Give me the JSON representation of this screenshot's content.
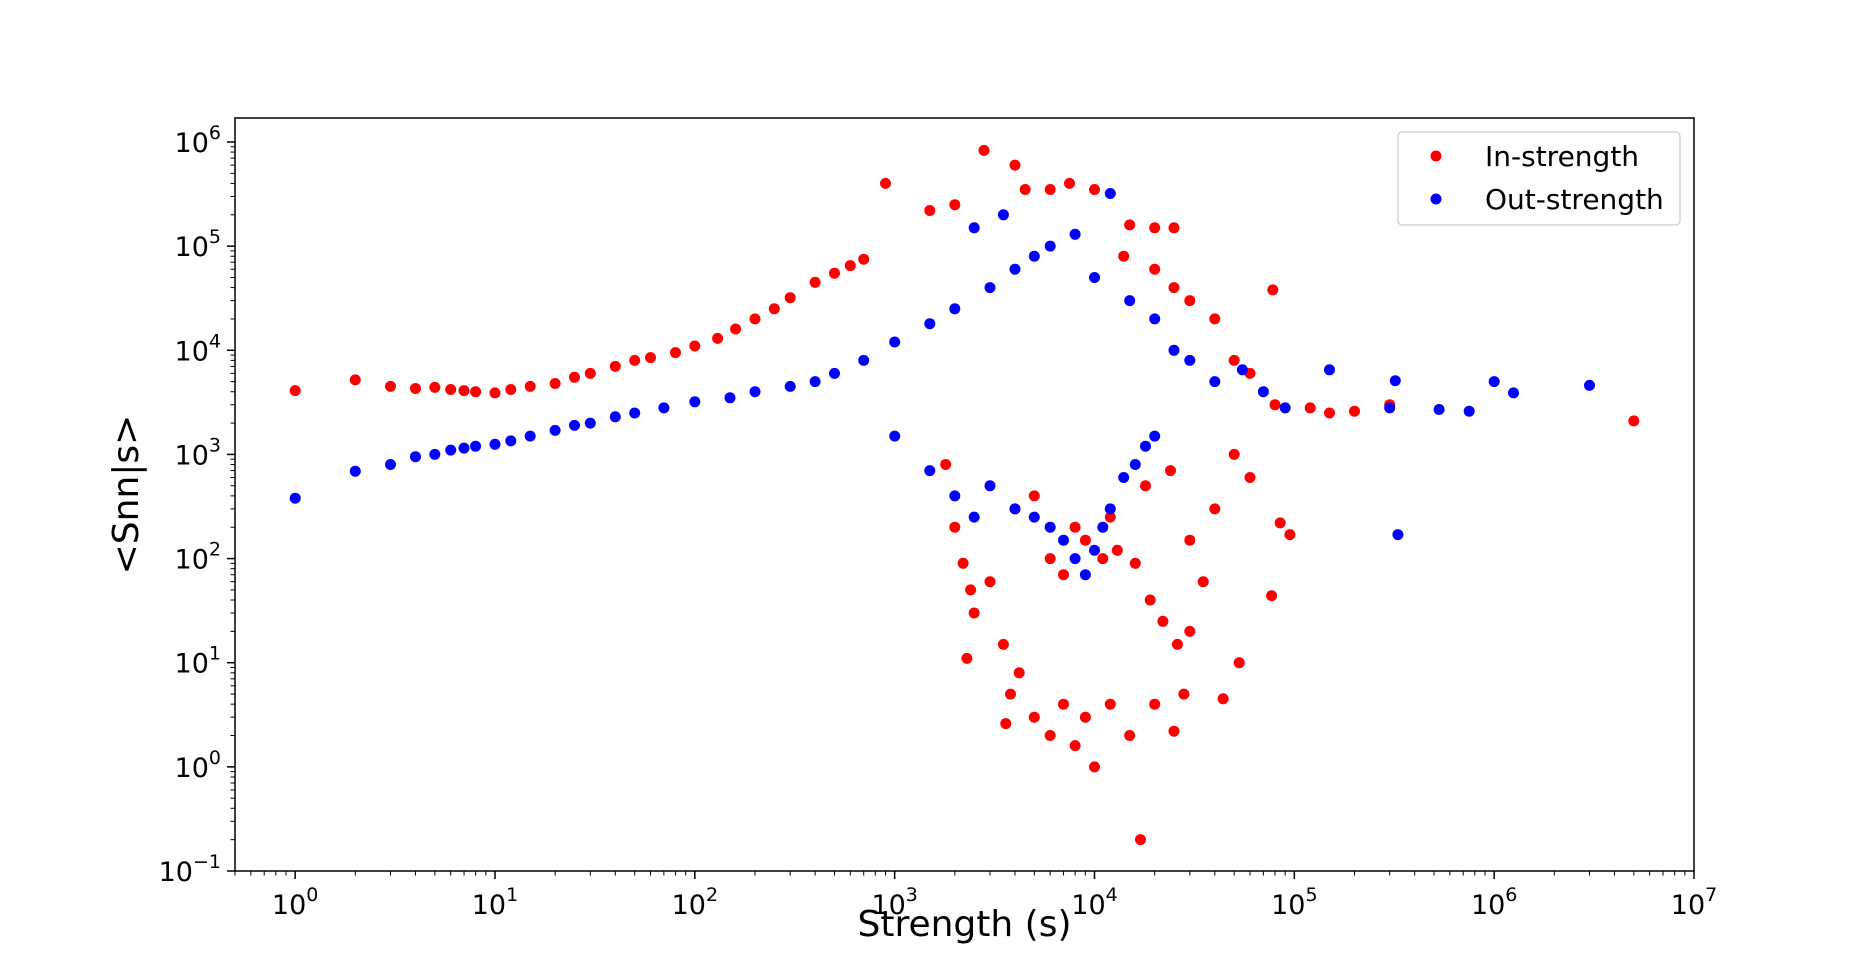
{
  "chart_data": {
    "type": "scatter",
    "title": "",
    "xlabel": "Strength (s)",
    "ylabel": "<Snn|s>",
    "xscale": "log",
    "yscale": "log",
    "xlim": [
      0.5,
      10000000
    ],
    "ylim": [
      0.1,
      1700000
    ],
    "x_ticks": [
      {
        "value": 1,
        "base": "10",
        "exp": "0"
      },
      {
        "value": 10,
        "base": "10",
        "exp": "1"
      },
      {
        "value": 100,
        "base": "10",
        "exp": "2"
      },
      {
        "value": 1000,
        "base": "10",
        "exp": "3"
      },
      {
        "value": 10000,
        "base": "10",
        "exp": "4"
      },
      {
        "value": 100000,
        "base": "10",
        "exp": "5"
      },
      {
        "value": 1000000,
        "base": "10",
        "exp": "6"
      },
      {
        "value": 10000000,
        "base": "10",
        "exp": "7"
      }
    ],
    "y_ticks": [
      {
        "value": 0.1,
        "base": "10",
        "exp": "−1"
      },
      {
        "value": 1,
        "base": "10",
        "exp": "0"
      },
      {
        "value": 10,
        "base": "10",
        "exp": "1"
      },
      {
        "value": 100,
        "base": "10",
        "exp": "2"
      },
      {
        "value": 1000,
        "base": "10",
        "exp": "3"
      },
      {
        "value": 10000,
        "base": "10",
        "exp": "4"
      },
      {
        "value": 100000,
        "base": "10",
        "exp": "5"
      },
      {
        "value": 1000000,
        "base": "10",
        "exp": "6"
      }
    ],
    "grid": false,
    "legend_position": "top-right",
    "series": [
      {
        "name": "In-strength",
        "color": "#ff0000",
        "points": [
          [
            1,
            4100
          ],
          [
            2,
            5200
          ],
          [
            3,
            4500
          ],
          [
            4,
            4300
          ],
          [
            5,
            4400
          ],
          [
            6,
            4200
          ],
          [
            7,
            4100
          ],
          [
            8,
            4000
          ],
          [
            10,
            3900
          ],
          [
            12,
            4200
          ],
          [
            15,
            4500
          ],
          [
            20,
            4800
          ],
          [
            25,
            5500
          ],
          [
            30,
            6000
          ],
          [
            40,
            7000
          ],
          [
            50,
            8000
          ],
          [
            60,
            8500
          ],
          [
            80,
            9500
          ],
          [
            100,
            11000
          ],
          [
            130,
            13000
          ],
          [
            160,
            16000
          ],
          [
            200,
            20000
          ],
          [
            250,
            25000
          ],
          [
            300,
            32000
          ],
          [
            400,
            45000
          ],
          [
            500,
            55000
          ],
          [
            600,
            65000
          ],
          [
            700,
            75000
          ],
          [
            900,
            400000
          ],
          [
            1500,
            220000
          ],
          [
            2000,
            250000
          ],
          [
            2800,
            830000
          ],
          [
            4000,
            600000
          ],
          [
            4500,
            350000
          ],
          [
            6000,
            350000
          ],
          [
            7500,
            400000
          ],
          [
            10000,
            350000
          ],
          [
            15000,
            160000
          ],
          [
            20000,
            150000
          ],
          [
            25000,
            150000
          ],
          [
            14000,
            80000
          ],
          [
            20000,
            60000
          ],
          [
            25000,
            40000
          ],
          [
            30000,
            30000
          ],
          [
            78000,
            38000
          ],
          [
            40000,
            20000
          ],
          [
            50000,
            8000
          ],
          [
            60000,
            6000
          ],
          [
            80000,
            3000
          ],
          [
            120000,
            2800
          ],
          [
            150000,
            2500
          ],
          [
            200000,
            2600
          ],
          [
            300000,
            3000
          ],
          [
            5000000,
            2100
          ],
          [
            1800,
            800
          ],
          [
            2000,
            200
          ],
          [
            2200,
            90
          ],
          [
            2400,
            50
          ],
          [
            2500,
            30
          ],
          [
            2300,
            11
          ],
          [
            3000,
            60
          ],
          [
            3500,
            15
          ],
          [
            3800,
            5
          ],
          [
            3600,
            2.6
          ],
          [
            4200,
            8
          ],
          [
            5000,
            3
          ],
          [
            6000,
            2
          ],
          [
            7000,
            4
          ],
          [
            8000,
            1.6
          ],
          [
            9000,
            3
          ],
          [
            10000,
            1
          ],
          [
            12000,
            4
          ],
          [
            15000,
            2
          ],
          [
            17000,
            0.2
          ],
          [
            20000,
            4
          ],
          [
            25000,
            2.2
          ],
          [
            28000,
            5
          ],
          [
            44000,
            4.5
          ],
          [
            53000,
            10
          ],
          [
            77000,
            44
          ],
          [
            95000,
            170
          ],
          [
            85000,
            220
          ],
          [
            60000,
            600
          ],
          [
            50000,
            1000
          ],
          [
            40000,
            300
          ],
          [
            30000,
            150
          ],
          [
            6000,
            100
          ],
          [
            7000,
            70
          ],
          [
            8000,
            200
          ],
          [
            9000,
            150
          ],
          [
            11000,
            100
          ],
          [
            13000,
            120
          ],
          [
            16000,
            90
          ],
          [
            19000,
            40
          ],
          [
            22000,
            25
          ],
          [
            26000,
            15
          ],
          [
            30000,
            20
          ],
          [
            35000,
            60
          ],
          [
            4000,
            300
          ],
          [
            5000,
            400
          ],
          [
            12000,
            250
          ],
          [
            18000,
            500
          ],
          [
            24000,
            700
          ]
        ]
      },
      {
        "name": "Out-strength",
        "color": "#0000ff",
        "points": [
          [
            1,
            380
          ],
          [
            2,
            690
          ],
          [
            3,
            800
          ],
          [
            4,
            950
          ],
          [
            5,
            1000
          ],
          [
            6,
            1100
          ],
          [
            7,
            1150
          ],
          [
            8,
            1200
          ],
          [
            10,
            1250
          ],
          [
            12,
            1350
          ],
          [
            15,
            1500
          ],
          [
            20,
            1700
          ],
          [
            25,
            1900
          ],
          [
            30,
            2000
          ],
          [
            40,
            2300
          ],
          [
            50,
            2500
          ],
          [
            70,
            2800
          ],
          [
            100,
            3200
          ],
          [
            150,
            3500
          ],
          [
            200,
            4000
          ],
          [
            300,
            4500
          ],
          [
            400,
            5000
          ],
          [
            500,
            6000
          ],
          [
            700,
            8000
          ],
          [
            1000,
            12000
          ],
          [
            1500,
            18000
          ],
          [
            2000,
            25000
          ],
          [
            3000,
            40000
          ],
          [
            4000,
            60000
          ],
          [
            5000,
            80000
          ],
          [
            6000,
            100000
          ],
          [
            8000,
            130000
          ],
          [
            12000,
            320000
          ],
          [
            2500,
            150000
          ],
          [
            3500,
            200000
          ],
          [
            10000,
            50000
          ],
          [
            15000,
            30000
          ],
          [
            20000,
            20000
          ],
          [
            25000,
            10000
          ],
          [
            30000,
            8000
          ],
          [
            40000,
            5000
          ],
          [
            55000,
            6500
          ],
          [
            70000,
            4000
          ],
          [
            90000,
            2800
          ],
          [
            150000,
            6500
          ],
          [
            300000,
            2800
          ],
          [
            320000,
            5100
          ],
          [
            330000,
            170
          ],
          [
            530000,
            2700
          ],
          [
            750000,
            2600
          ],
          [
            1000000,
            5000
          ],
          [
            1250000,
            3900
          ],
          [
            3000000,
            4600
          ],
          [
            1000,
            1500
          ],
          [
            1500,
            700
          ],
          [
            2000,
            400
          ],
          [
            2500,
            250
          ],
          [
            3000,
            500
          ],
          [
            4000,
            300
          ],
          [
            5000,
            250
          ],
          [
            6000,
            200
          ],
          [
            7000,
            150
          ],
          [
            8000,
            100
          ],
          [
            9000,
            70
          ],
          [
            10000,
            120
          ],
          [
            11000,
            200
          ],
          [
            12000,
            300
          ],
          [
            14000,
            600
          ],
          [
            16000,
            800
          ],
          [
            18000,
            1200
          ],
          [
            20000,
            1500
          ]
        ]
      }
    ]
  }
}
